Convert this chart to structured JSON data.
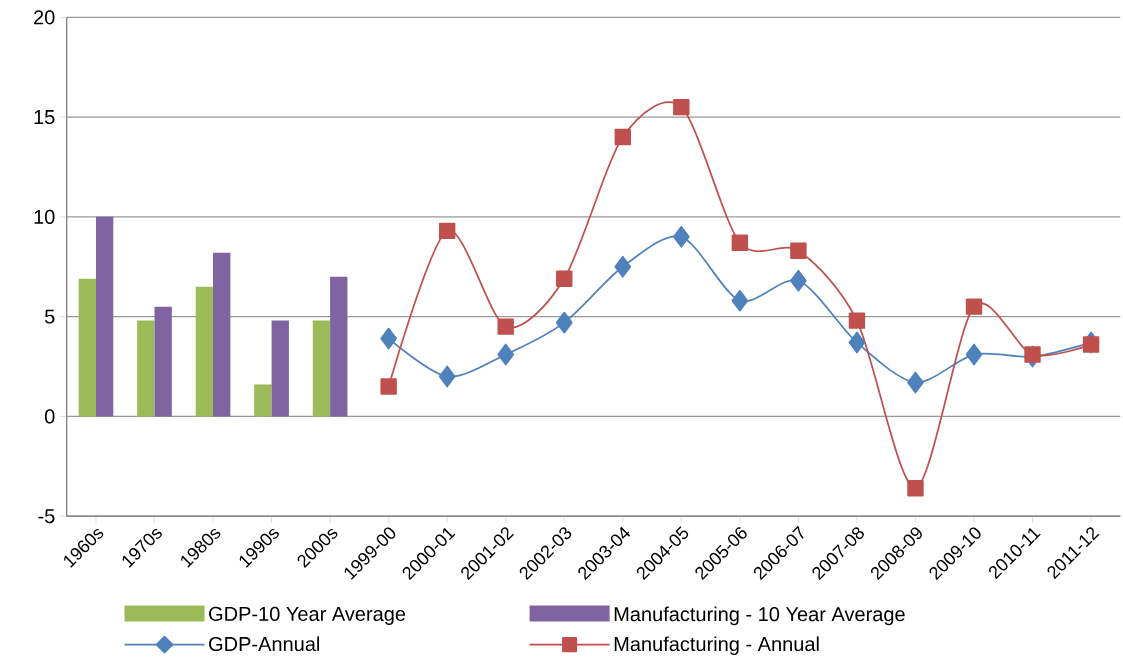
{
  "chart_data": {
    "type": "bar",
    "categories": [
      "1960s",
      "1970s",
      "1980s",
      "1990s",
      "2000s",
      "1999-00",
      "2000-01",
      "2001-02",
      "2002-03",
      "2003-04",
      "2004-05",
      "2005-06",
      "2006-07",
      "2007-08",
      "2008-09",
      "2009-10",
      "2010-11",
      "2011-12"
    ],
    "series": [
      {
        "name": "GDP-10 Year Average",
        "color": "#9bbb59",
        "values": [
          6.9,
          4.8,
          6.5,
          1.6,
          4.8,
          null,
          null,
          null,
          null,
          null,
          null,
          null,
          null,
          null,
          null,
          null,
          null,
          null
        ]
      },
      {
        "name": "Manufacturing - 10 Year Average",
        "color": "#8064a2",
        "values": [
          10.0,
          5.5,
          8.2,
          4.8,
          7.0,
          null,
          null,
          null,
          null,
          null,
          null,
          null,
          null,
          null,
          null,
          null,
          null,
          null
        ]
      },
      {
        "name": "GDP-Annual",
        "type": "line",
        "marker": "diamond",
        "color": "#4f81bd",
        "values": [
          null,
          null,
          null,
          null,
          null,
          3.9,
          2.0,
          3.1,
          4.7,
          7.5,
          9.0,
          5.8,
          6.8,
          3.7,
          1.7,
          3.1,
          3.0,
          3.7
        ]
      },
      {
        "name": "Manufacturing - Annual",
        "type": "line",
        "marker": "square",
        "color": "#c0504d",
        "values": [
          null,
          null,
          null,
          null,
          null,
          1.5,
          9.3,
          4.5,
          6.9,
          14.0,
          15.5,
          8.7,
          8.3,
          4.8,
          -3.6,
          5.5,
          3.1,
          3.6
        ]
      }
    ],
    "ylim": [
      -5,
      20
    ],
    "yticks": [
      -5,
      0,
      5,
      10,
      15,
      20
    ],
    "grid": "y",
    "legend": "bottom"
  }
}
